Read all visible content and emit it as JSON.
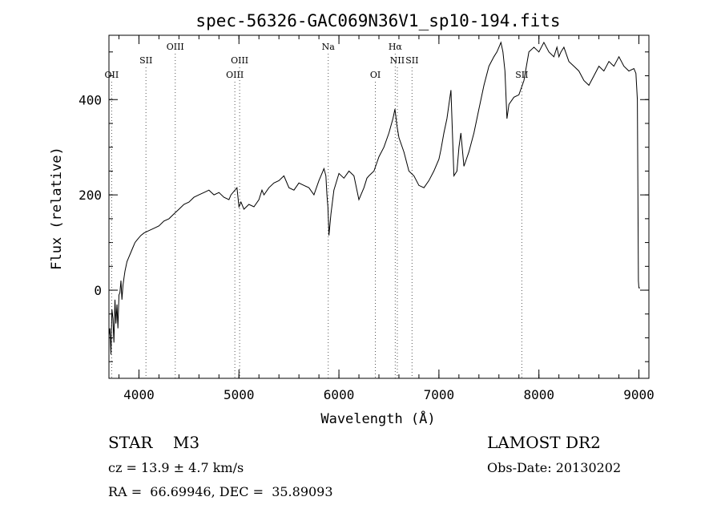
{
  "chart_data": {
    "type": "line",
    "title": "spec-56326-GAC069N36V1_sp10-194.fits",
    "xlabel": "Wavelength (Å)",
    "ylabel": "Flux (relative)",
    "xlim": [
      3700,
      9100
    ],
    "ylim": [
      -185,
      535
    ],
    "xticks": [
      4000,
      5000,
      6000,
      7000,
      8000,
      9000
    ],
    "yticks": [
      0,
      200,
      400
    ],
    "x_minor_step": 200,
    "y_minor_step": 50,
    "grid": false,
    "line_color": "#000000",
    "spectral_lines": [
      {
        "label": "OII",
        "x": 3727,
        "row": 3
      },
      {
        "label": "SII",
        "x": 4070,
        "row": 2
      },
      {
        "label": "OIII",
        "x": 4363,
        "row": 1
      },
      {
        "label": "OIII",
        "x": 4959,
        "row": 3
      },
      {
        "label": "OIII",
        "x": 5007,
        "row": 2
      },
      {
        "label": "Na",
        "x": 5893,
        "row": 1
      },
      {
        "label": "OI",
        "x": 6364,
        "row": 3
      },
      {
        "label": "Hα",
        "x": 6563,
        "row": 1
      },
      {
        "label": "NII",
        "x": 6584,
        "row": 2
      },
      {
        "label": "SII",
        "x": 6731,
        "row": 2
      },
      {
        "label": "SII",
        "x": 7829,
        "row": 3
      }
    ],
    "series": [
      {
        "x": [
          3700,
          3710,
          3720,
          3730,
          3740,
          3750,
          3760,
          3770,
          3780,
          3790,
          3800,
          3810,
          3820,
          3830,
          3840,
          3850,
          3860,
          3880,
          3900,
          3920,
          3940,
          3960,
          3980,
          4000,
          4020,
          4050,
          4100,
          4150,
          4200,
          4250,
          4300,
          4350,
          4400,
          4450,
          4500,
          4550,
          4600,
          4650,
          4700,
          4750,
          4800,
          4850,
          4900,
          4920,
          4940,
          4960,
          4980,
          5000,
          5020,
          5050,
          5100,
          5150,
          5200,
          5230,
          5250,
          5300,
          5350,
          5400,
          5450,
          5500,
          5550,
          5600,
          5650,
          5700,
          5750,
          5800,
          5820,
          5850,
          5870,
          5880,
          5890,
          5895,
          5900,
          5920,
          5950,
          6000,
          6050,
          6100,
          6150,
          6200,
          6250,
          6280,
          6300,
          6350,
          6400,
          6450,
          6500,
          6520,
          6540,
          6560,
          6580,
          6600,
          6650,
          6700,
          6750,
          6800,
          6850,
          6900,
          6950,
          7000,
          7020,
          7050,
          7080,
          7100,
          7120,
          7150,
          7180,
          7200,
          7220,
          7250,
          7300,
          7350,
          7400,
          7450,
          7500,
          7550,
          7580,
          7600,
          7620,
          7640,
          7660,
          7680,
          7700,
          7750,
          7800,
          7850,
          7900,
          7950,
          8000,
          8050,
          8100,
          8150,
          8180,
          8200,
          8220,
          8250,
          8300,
          8350,
          8400,
          8450,
          8500,
          8550,
          8600,
          8650,
          8700,
          8750,
          8800,
          8850,
          8900,
          8950,
          8970,
          8985,
          8990,
          8995,
          9000,
          9010
        ],
        "y": [
          -95,
          -80,
          -135,
          -40,
          -60,
          -110,
          -20,
          -70,
          -30,
          -80,
          -10,
          -5,
          20,
          -20,
          10,
          25,
          40,
          60,
          70,
          80,
          90,
          100,
          105,
          110,
          115,
          120,
          125,
          130,
          135,
          145,
          150,
          160,
          170,
          180,
          185,
          195,
          200,
          205,
          210,
          200,
          205,
          195,
          190,
          200,
          205,
          210,
          215,
          175,
          185,
          170,
          180,
          175,
          190,
          210,
          200,
          215,
          225,
          230,
          240,
          215,
          210,
          225,
          220,
          215,
          200,
          230,
          240,
          255,
          240,
          200,
          175,
          145,
          115,
          160,
          210,
          245,
          235,
          250,
          240,
          190,
          215,
          235,
          240,
          250,
          280,
          300,
          330,
          345,
          360,
          380,
          345,
          320,
          290,
          250,
          240,
          220,
          215,
          230,
          250,
          275,
          295,
          330,
          360,
          390,
          420,
          240,
          250,
          300,
          330,
          260,
          290,
          330,
          380,
          430,
          470,
          490,
          500,
          510,
          520,
          500,
          460,
          360,
          390,
          405,
          410,
          440,
          500,
          510,
          500,
          520,
          500,
          490,
          510,
          490,
          500,
          510,
          480,
          470,
          460,
          440,
          430,
          450,
          470,
          460,
          480,
          470,
          490,
          470,
          460,
          465,
          455,
          400,
          200,
          20,
          5,
          5
        ]
      }
    ]
  },
  "info": {
    "class_line": "STAR    M3",
    "survey": "LAMOST DR2",
    "cz_line": "cz = 13.9 ± 4.7 km/s",
    "obs_date": "Obs-Date: 20130202",
    "radec_line": "RA =  66.69946, DEC =  35.89093"
  }
}
